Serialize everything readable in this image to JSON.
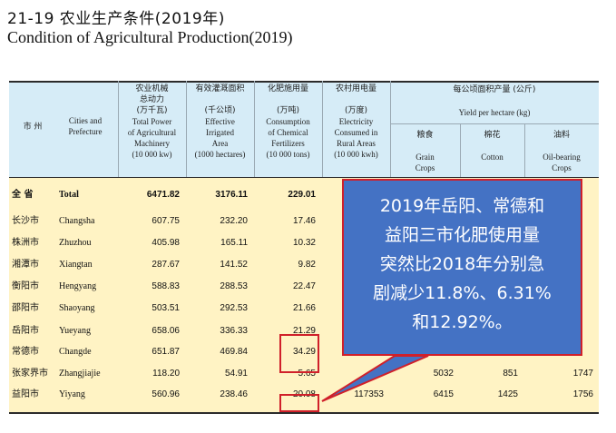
{
  "title": {
    "cn": "21-19   农业生产条件(2019年)",
    "en": "Condition of Agricultural Production(2019)"
  },
  "headers": {
    "city_cn": "市 州",
    "city_en": [
      "Cities and",
      "Prefecture"
    ],
    "machinery": [
      "农业机械",
      "总动力",
      "(万千瓦)",
      "Total Power",
      "of Agricultural",
      "Machinery",
      "(10 000 kw)"
    ],
    "irrigated": [
      "有效灌溉面积",
      "(千公顷)",
      "Effective",
      "Irrigated",
      "Area",
      "(1000 hectares)"
    ],
    "fertilizer": [
      "化肥施用量",
      "(万吨)",
      "Consumption",
      "of Chemical",
      "Fertilizers",
      "(10 000 tons)"
    ],
    "electricity": [
      "农村用电量",
      "(万度)",
      "Electricity",
      "Consumed in",
      "Rural Areas",
      "(10 000 kwh)"
    ],
    "yield_group_cn": "每公顷面积产量 (公斤)",
    "yield_group_en": "Yield per hectare  (kg)",
    "grain": [
      "粮食",
      "Grain",
      "Crops"
    ],
    "cotton": [
      "棉花",
      "Cotton"
    ],
    "oil": [
      "油料",
      "Oil-bearing",
      "Crops"
    ]
  },
  "rows": [
    {
      "cn": "全 省",
      "en": "Total",
      "mach": "6471.82",
      "irr": "3176.11",
      "fert": "229.01",
      "elec": "",
      "grain": "",
      "cotton": "",
      "oil": "",
      "bold": true
    },
    {
      "cn": "长沙市",
      "en": "Changsha",
      "mach": "607.75",
      "irr": "232.20",
      "fert": "17.46",
      "elec": "",
      "grain": "",
      "cotton": "",
      "oil": ""
    },
    {
      "cn": "株洲市",
      "en": "Zhuzhou",
      "mach": "405.98",
      "irr": "165.11",
      "fert": "10.32",
      "elec": "",
      "grain": "",
      "cotton": "",
      "oil": ""
    },
    {
      "cn": "湘潭市",
      "en": "Xiangtan",
      "mach": "287.67",
      "irr": "141.52",
      "fert": "9.82",
      "elec": "",
      "grain": "",
      "cotton": "",
      "oil": ""
    },
    {
      "cn": "衡阳市",
      "en": "Hengyang",
      "mach": "588.83",
      "irr": "288.53",
      "fert": "22.47",
      "elec": "",
      "grain": "",
      "cotton": "",
      "oil": ""
    },
    {
      "cn": "邵阳市",
      "en": "Shaoyang",
      "mach": "503.51",
      "irr": "292.53",
      "fert": "21.66",
      "elec": "",
      "grain": "",
      "cotton": "",
      "oil": ""
    },
    {
      "cn": "岳阳市",
      "en": "Yueyang",
      "mach": "658.06",
      "irr": "336.33",
      "fert": "21.29",
      "elec": "",
      "grain": "",
      "cotton": "",
      "oil": ""
    },
    {
      "cn": "常德市",
      "en": "Changde",
      "mach": "651.87",
      "irr": "469.84",
      "fert": "34.29",
      "elec": "",
      "grain": "",
      "cotton": "",
      "oil": ""
    },
    {
      "cn": "张家界市",
      "en": "Zhangjiajie",
      "mach": "118.20",
      "irr": "54.91",
      "fert": "5.65",
      "elec": "",
      "grain": "5032",
      "cotton": "851",
      "oil": "1747"
    },
    {
      "cn": "益阳市",
      "en": "Yiyang",
      "mach": "560.96",
      "irr": "238.46",
      "fert": "20.08",
      "elec": "117353",
      "grain": "6415",
      "cotton": "1425",
      "oil": "1756"
    }
  ],
  "callout": {
    "lines": [
      "2019年岳阳、常德和",
      "益阳三市化肥使用量",
      "突然比2018年分别急",
      "剧减少11.8%、6.31%",
      "和12.92%。"
    ]
  },
  "colors": {
    "header_bg": "#d6ecf7",
    "body_bg": "#fff3c4",
    "callout_bg": "#4472c4",
    "highlight": "#d0202a"
  }
}
